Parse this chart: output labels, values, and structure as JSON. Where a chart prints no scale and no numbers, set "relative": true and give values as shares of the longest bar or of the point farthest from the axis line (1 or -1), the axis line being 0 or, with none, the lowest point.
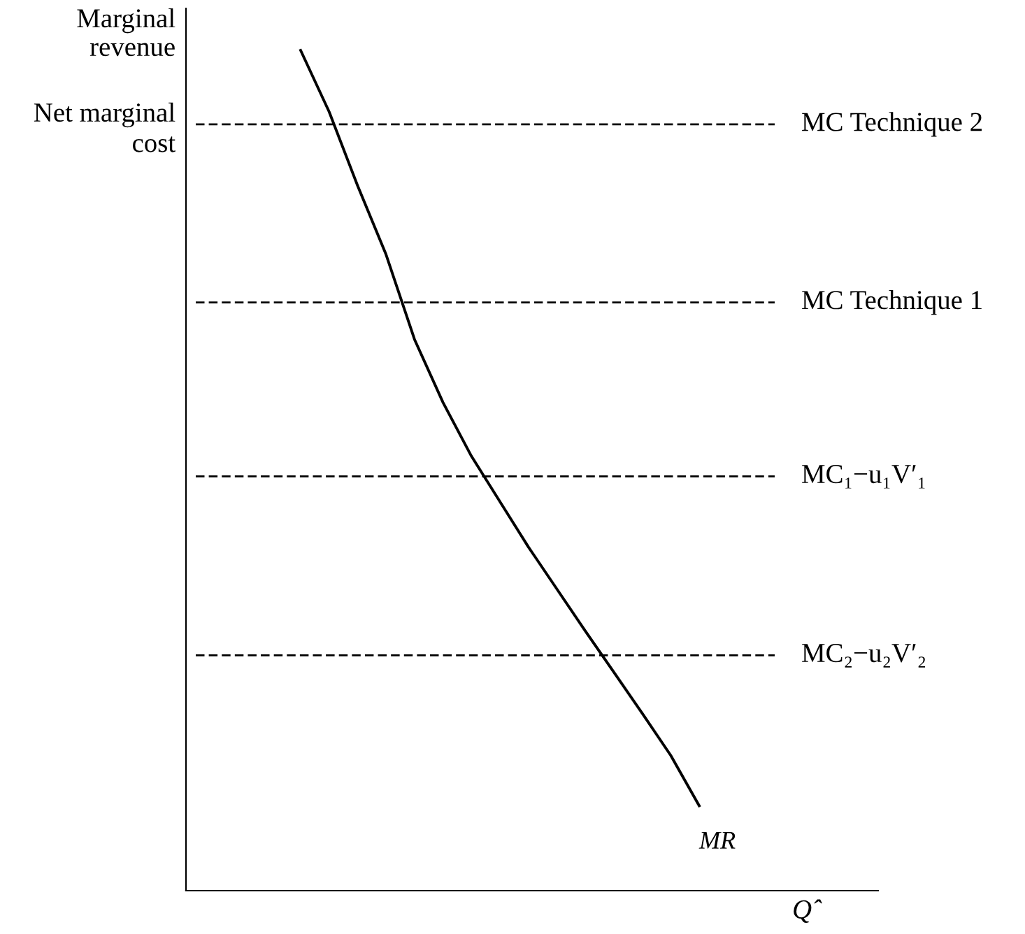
{
  "chart_data": {
    "type": "line",
    "relative": true,
    "ylabel": "Marginal\nrevenue",
    "xlabel": "Q̂",
    "categories": [
      null,
      null,
      null,
      null,
      null,
      null,
      null,
      null,
      null,
      null,
      null,
      null,
      null,
      null,
      null
    ],
    "series": [
      {
        "name": "MR",
        "color": "#000000",
        "values": [
          1.0,
          0.927,
          0.839,
          0.757,
          0.656,
          0.581,
          0.517,
          0.463,
          0.409,
          0.359,
          0.309,
          0.26,
          0.211,
          0.161,
          0.101
        ]
      }
    ],
    "ref_lines": [
      {
        "axis": "y",
        "value": 0.912,
        "label": "MC Technique 2",
        "line_style": "dashed",
        "color": "#000000"
      },
      {
        "axis": "y",
        "value": 0.7,
        "label": "MC Technique 1",
        "line_style": "dashed",
        "color": "#000000"
      },
      {
        "axis": "y",
        "value": 0.493,
        "label": "MC₁−u₁V′₁",
        "line_style": "dashed",
        "color": "#000000"
      },
      {
        "axis": "y",
        "value": 0.28,
        "label": "MC₂−u₂V′₂",
        "line_style": "dashed",
        "color": "#000000"
      }
    ],
    "annotations": [
      "Net marginal\ncost"
    ],
    "marker": "none",
    "line_style": "solid"
  }
}
